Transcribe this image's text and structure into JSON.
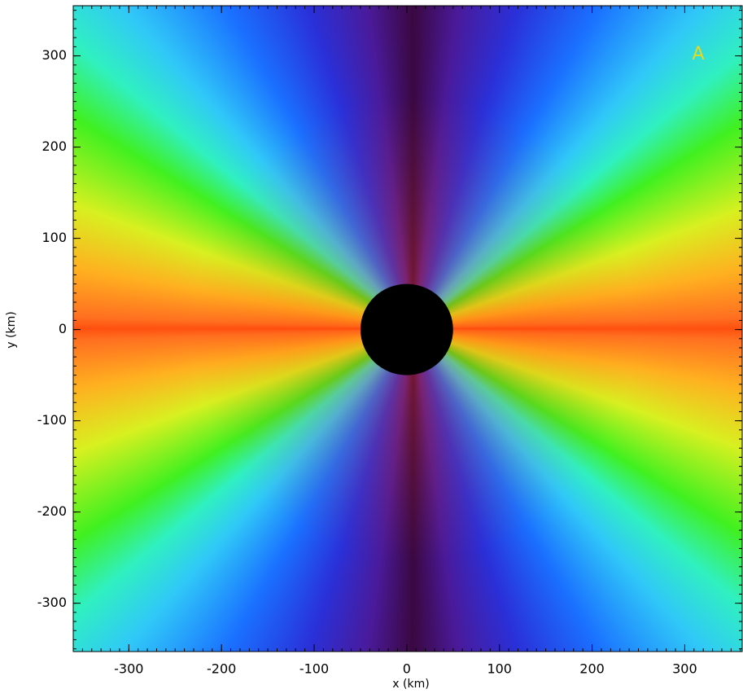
{
  "chart_data": {
    "type": "heatmap",
    "panel_label": "A",
    "panel_label_color": "#e8d820",
    "x_label": "x (km)",
    "y_label": "y (km)",
    "xlim": [
      -360,
      362
    ],
    "ylim": [
      -353,
      355
    ],
    "xticks": [
      -300,
      -200,
      -100,
      0,
      100,
      200,
      300
    ],
    "yticks": [
      -300,
      -200,
      -100,
      0,
      100,
      200,
      300
    ],
    "mask": {
      "x": 0,
      "y": 0,
      "r": 50,
      "color": "#000000"
    }
  }
}
